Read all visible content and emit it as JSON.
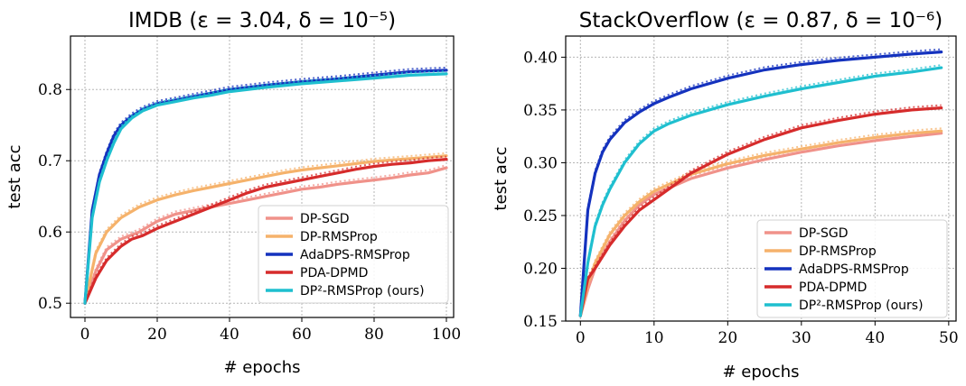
{
  "chart_data": [
    {
      "type": "line",
      "title": "IMDB (ε = 3.04, δ = 10⁻⁵)",
      "xlabel": "# epochs",
      "ylabel": "test acc",
      "xlim": [
        -4,
        102
      ],
      "ylim": [
        0.48,
        0.875
      ],
      "xticks": [
        0,
        20,
        40,
        60,
        80,
        100
      ],
      "yticks": [
        0.5,
        0.6,
        0.7,
        0.8
      ],
      "ytick_format": 1,
      "grid": true,
      "legend_position": "lower-right",
      "series": [
        {
          "name": "DP-SGD",
          "color": "#f0928a",
          "x": [
            0,
            3,
            6,
            10,
            15,
            20,
            25,
            30,
            35,
            40,
            45,
            50,
            55,
            60,
            65,
            70,
            75,
            80,
            85,
            90,
            95,
            100
          ],
          "values": [
            0.5,
            0.545,
            0.575,
            0.59,
            0.6,
            0.615,
            0.625,
            0.63,
            0.635,
            0.64,
            0.645,
            0.65,
            0.655,
            0.66,
            0.663,
            0.667,
            0.67,
            0.673,
            0.676,
            0.68,
            0.683,
            0.69
          ]
        },
        {
          "name": "DP-RMSProp",
          "color": "#f5b26b",
          "x": [
            0,
            3,
            6,
            10,
            15,
            20,
            25,
            30,
            35,
            40,
            45,
            50,
            55,
            60,
            65,
            70,
            75,
            80,
            85,
            90,
            95,
            100
          ],
          "values": [
            0.5,
            0.57,
            0.6,
            0.62,
            0.635,
            0.645,
            0.652,
            0.658,
            0.663,
            0.668,
            0.673,
            0.678,
            0.683,
            0.687,
            0.69,
            0.693,
            0.696,
            0.699,
            0.701,
            0.703,
            0.705,
            0.707
          ]
        },
        {
          "name": "AdaDPS-RMSProp",
          "color": "#1432be",
          "x": [
            0,
            2,
            4,
            6,
            8,
            10,
            13,
            16,
            20,
            25,
            30,
            35,
            40,
            50,
            60,
            70,
            80,
            90,
            100
          ],
          "values": [
            0.5,
            0.63,
            0.68,
            0.71,
            0.735,
            0.75,
            0.763,
            0.772,
            0.78,
            0.785,
            0.79,
            0.795,
            0.8,
            0.806,
            0.811,
            0.815,
            0.82,
            0.825,
            0.827
          ]
        },
        {
          "name": "PDA-DPMD",
          "color": "#d62b2b",
          "x": [
            0,
            3,
            6,
            10,
            13,
            16,
            20,
            25,
            30,
            35,
            40,
            45,
            50,
            55,
            60,
            65,
            70,
            75,
            80,
            85,
            90,
            95,
            100
          ],
          "values": [
            0.5,
            0.535,
            0.56,
            0.58,
            0.59,
            0.595,
            0.605,
            0.615,
            0.625,
            0.635,
            0.645,
            0.655,
            0.663,
            0.668,
            0.673,
            0.678,
            0.683,
            0.688,
            0.692,
            0.695,
            0.697,
            0.7,
            0.702
          ]
        },
        {
          "name": "DP²-RMSProp (ours)",
          "color": "#1fbfcf",
          "x": [
            0,
            2,
            4,
            6,
            8,
            10,
            13,
            16,
            20,
            25,
            30,
            35,
            40,
            50,
            60,
            70,
            80,
            90,
            100
          ],
          "values": [
            0.5,
            0.62,
            0.67,
            0.7,
            0.725,
            0.745,
            0.76,
            0.77,
            0.778,
            0.783,
            0.788,
            0.792,
            0.797,
            0.803,
            0.808,
            0.812,
            0.816,
            0.82,
            0.822
          ]
        }
      ]
    },
    {
      "type": "line",
      "title": "StackOverflow (ε = 0.87, δ = 10⁻⁶)",
      "xlabel": "# epochs",
      "ylabel": "test acc",
      "xlim": [
        -2,
        51
      ],
      "ylim": [
        0.15,
        0.42
      ],
      "xticks": [
        0,
        10,
        20,
        30,
        40,
        50
      ],
      "yticks": [
        0.15,
        0.2,
        0.25,
        0.3,
        0.35,
        0.4
      ],
      "ytick_format": 2,
      "grid": true,
      "legend_position": "lower-right",
      "series": [
        {
          "name": "DP-SGD",
          "color": "#f0928a",
          "x": [
            0,
            1,
            2,
            4,
            6,
            8,
            10,
            15,
            20,
            25,
            30,
            35,
            40,
            45,
            49
          ],
          "values": [
            0.155,
            0.18,
            0.2,
            0.225,
            0.245,
            0.26,
            0.27,
            0.285,
            0.295,
            0.303,
            0.31,
            0.316,
            0.321,
            0.325,
            0.328
          ]
        },
        {
          "name": "DP-RMSProp",
          "color": "#f5b26b",
          "x": [
            0,
            1,
            2,
            4,
            6,
            8,
            10,
            15,
            20,
            25,
            30,
            35,
            40,
            45,
            49
          ],
          "values": [
            0.155,
            0.185,
            0.205,
            0.232,
            0.25,
            0.263,
            0.273,
            0.289,
            0.299,
            0.307,
            0.313,
            0.319,
            0.324,
            0.328,
            0.33
          ]
        },
        {
          "name": "AdaDPS-RMSProp",
          "color": "#1432be",
          "x": [
            0,
            1,
            2,
            3,
            4,
            6,
            8,
            10,
            12,
            15,
            20,
            25,
            30,
            35,
            40,
            45,
            49
          ],
          "values": [
            0.155,
            0.255,
            0.29,
            0.31,
            0.322,
            0.338,
            0.348,
            0.356,
            0.362,
            0.37,
            0.38,
            0.388,
            0.393,
            0.397,
            0.4,
            0.403,
            0.405
          ]
        },
        {
          "name": "PDA-DPMD",
          "color": "#d62b2b",
          "x": [
            0,
            1,
            2,
            4,
            6,
            8,
            10,
            15,
            20,
            25,
            30,
            35,
            40,
            45,
            49
          ],
          "values": [
            0.155,
            0.19,
            0.2,
            0.222,
            0.24,
            0.255,
            0.265,
            0.29,
            0.308,
            0.322,
            0.333,
            0.34,
            0.346,
            0.35,
            0.352
          ]
        },
        {
          "name": "DP²-RMSProp (ours)",
          "color": "#1fbfcf",
          "x": [
            0,
            1,
            2,
            3,
            4,
            6,
            8,
            10,
            12,
            15,
            20,
            25,
            30,
            35,
            40,
            45,
            49
          ],
          "values": [
            0.155,
            0.205,
            0.24,
            0.26,
            0.275,
            0.3,
            0.318,
            0.33,
            0.337,
            0.345,
            0.355,
            0.363,
            0.37,
            0.376,
            0.382,
            0.386,
            0.39
          ]
        }
      ]
    }
  ]
}
